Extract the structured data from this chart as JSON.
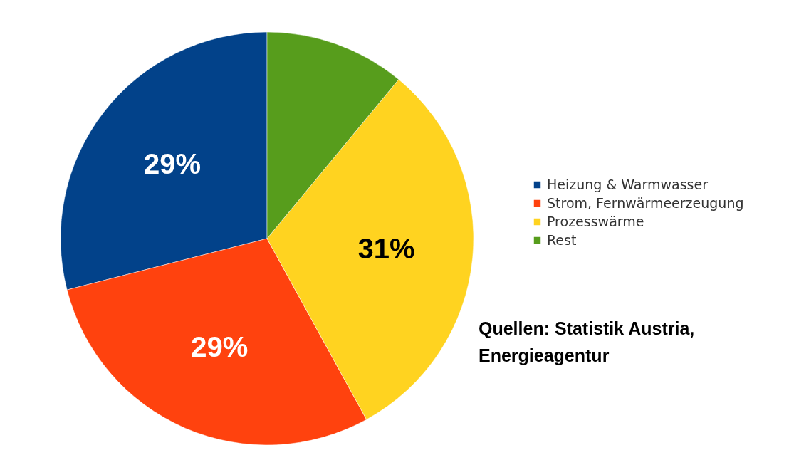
{
  "chart_data": {
    "type": "pie",
    "categories": [
      "Heizung & Warmwasser",
      "Strom, Fernwärmeerzeugung",
      "Prozesswärme",
      "Rest"
    ],
    "values": [
      29,
      29,
      31,
      11
    ],
    "colors": [
      "#02428a",
      "#ff420e",
      "#ffd320",
      "#579d1c"
    ],
    "value_labels": [
      "29%",
      "29%",
      "31%",
      null
    ],
    "legend": "right",
    "annotations": [
      "Quellen: Statistik Austria,\nEnergieagentur"
    ]
  }
}
